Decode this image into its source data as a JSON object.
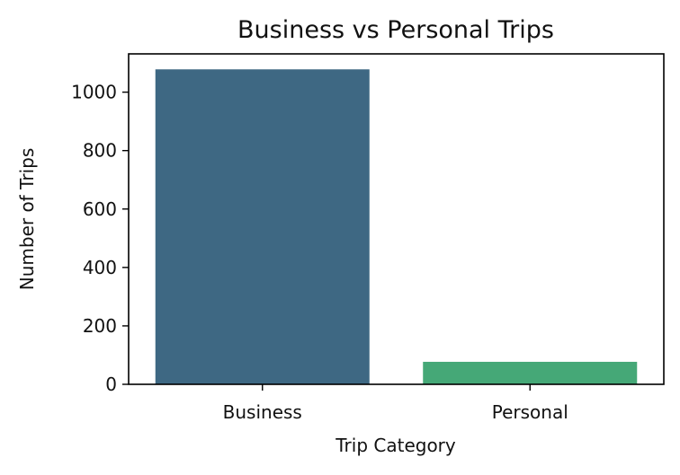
{
  "chart_data": {
    "type": "bar",
    "title": "Business vs Personal Trips",
    "xlabel": "Trip Category",
    "ylabel": "Number of Trips",
    "categories": [
      "Business",
      "Personal"
    ],
    "values": [
      1078,
      77
    ],
    "ylim": [
      0,
      1131
    ],
    "yticks": [
      0,
      200,
      400,
      600,
      800,
      1000
    ],
    "colors": [
      "#3e6883",
      "#45a877"
    ],
    "grid": false,
    "legend": "none"
  }
}
